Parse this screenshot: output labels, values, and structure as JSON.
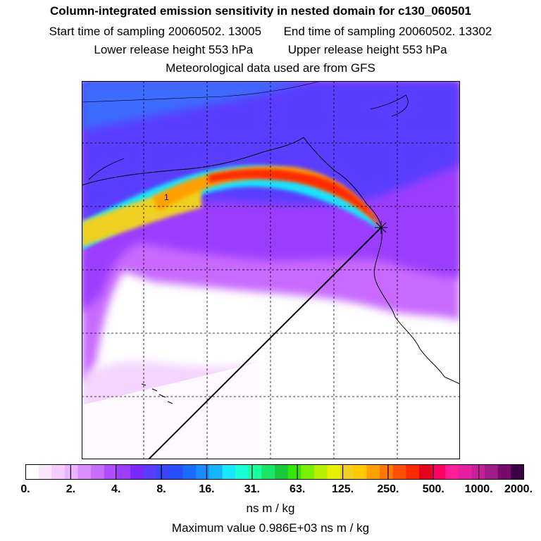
{
  "header": {
    "title": "Column-integrated emission sensitivity in nested domain for c130_060501",
    "start_time": "Start time of sampling 20060502. 13005",
    "end_time": "End time of sampling 20060502. 13302",
    "lower_height": "Lower release height  553 hPa",
    "upper_height": "Upper release height  553 hPa",
    "met_data": "Meteorological data used are from GFS"
  },
  "map": {
    "contour_label": "1",
    "plume_colors": [
      "#19e6ff",
      "#00c8e0",
      "#f0d020",
      "#ffa000",
      "#ff2a00",
      "#e6001e"
    ],
    "background_colors": [
      "#5a3cff",
      "#3c6bff",
      "#9b3cff",
      "#c86bff",
      "#eab4ff"
    ]
  },
  "colorbar": {
    "colors": [
      "#ffffff",
      "#fbe6ff",
      "#f4ccff",
      "#eab4ff",
      "#d88fff",
      "#c86bff",
      "#b24cff",
      "#9b3cff",
      "#7a28ff",
      "#5a3cff",
      "#3c46ff",
      "#2850ff",
      "#1a6bff",
      "#1a8cff",
      "#19b4ff",
      "#19e6ff",
      "#19ffd8",
      "#19ffa0",
      "#19e664",
      "#19c83c",
      "#32e600",
      "#78f000",
      "#b4f000",
      "#e6f000",
      "#f0d020",
      "#ffc800",
      "#ffa000",
      "#ff7800",
      "#ff5000",
      "#ff2a00",
      "#e6001e",
      "#ff0064",
      "#ff1e96",
      "#e61ea0",
      "#c81e9b",
      "#a01e8c",
      "#780a6b",
      "#3c0046"
    ],
    "tick_labels": [
      "0.",
      "2.",
      "4.",
      "8.",
      "16.",
      "31.",
      "63.",
      "125.",
      "250.",
      "500.",
      "1000.",
      "2000."
    ],
    "units": "ns m / kg",
    "max_value": "Maximum value  0.986E+03 ns m / kg"
  }
}
